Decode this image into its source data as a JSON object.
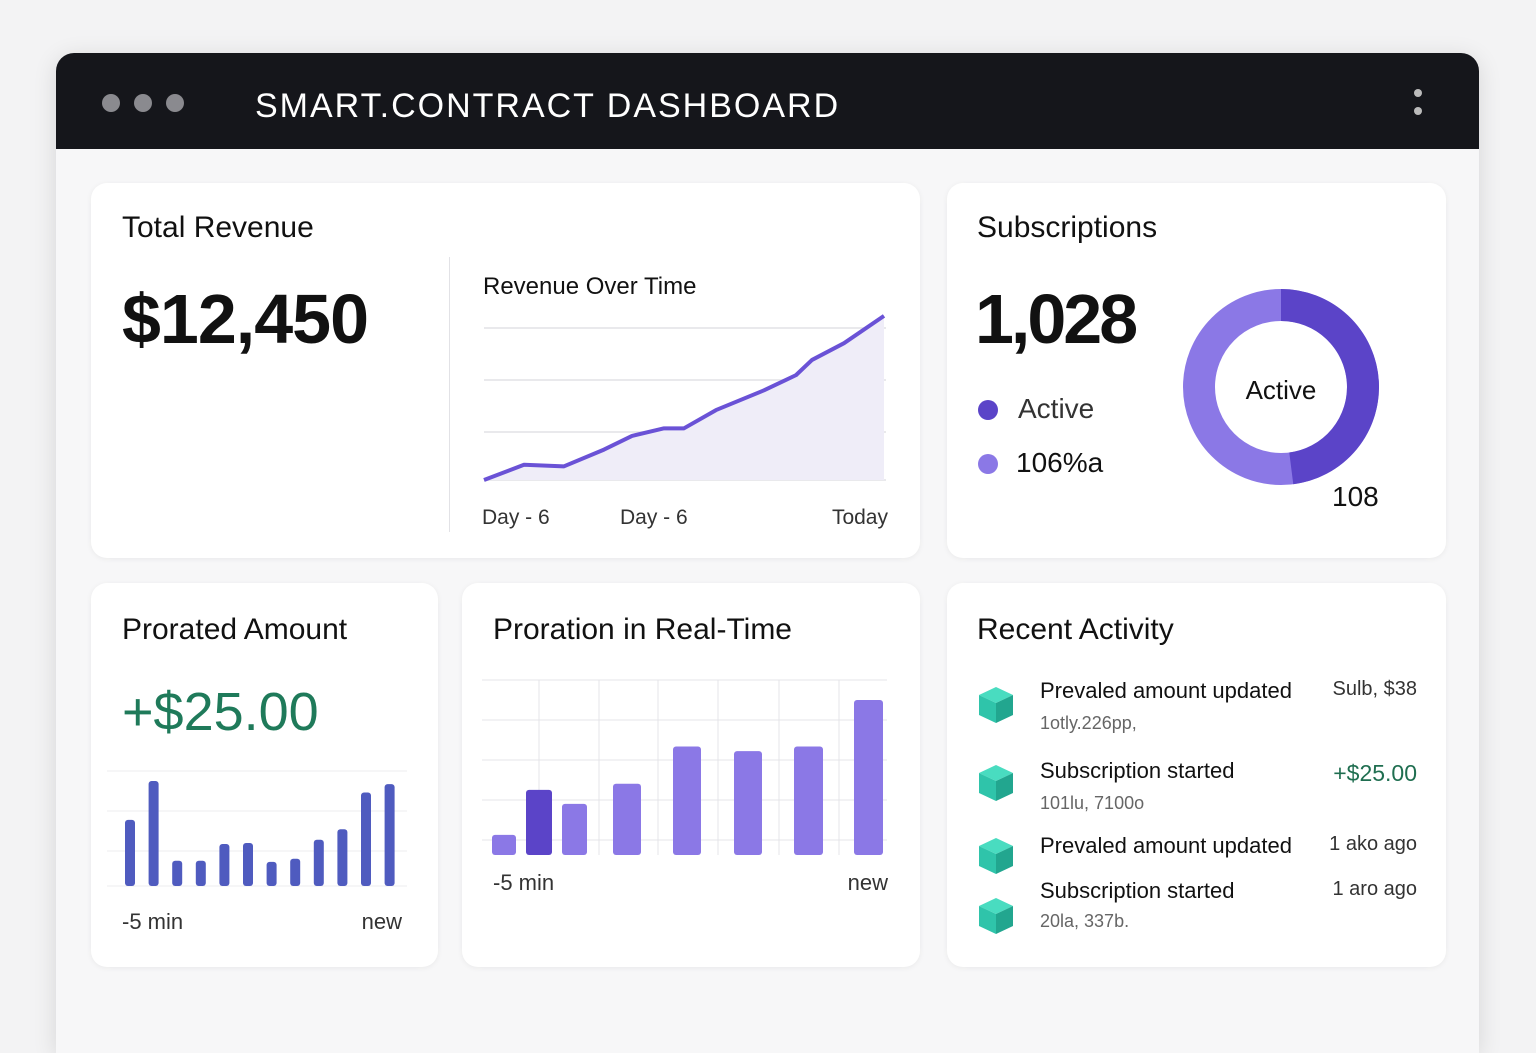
{
  "app": {
    "title": "SMART.CONTRACT DASHBOARD",
    "window_dots": 3
  },
  "revenue": {
    "title": "Total Revenue",
    "value": "$12,450",
    "chart_title": "Revenue Over Time",
    "x_labels": [
      "Day - 6",
      "Day - 6",
      "Today"
    ]
  },
  "subscriptions": {
    "title": "Subscriptions",
    "value": "1,028",
    "legend": [
      {
        "label": "Active",
        "color": "#5b44c8"
      },
      {
        "label": "106%a",
        "color": "#8b78e6"
      }
    ],
    "donut_center": "Active",
    "donut_label": "108",
    "active_fraction": 0.48
  },
  "prorated": {
    "title": "Prorated Amount",
    "value": "+$25.00",
    "x_start": "-5 min",
    "x_end": "new"
  },
  "realtime": {
    "title": "Proration in Real-Time",
    "x_start": "-5 min",
    "x_end": "new"
  },
  "activity": {
    "title": "Recent Activity",
    "items": [
      {
        "title": "Prevaled amount updated",
        "sub": "1otly.226pp,",
        "right": "Sulb, $38",
        "right_color": "#333333"
      },
      {
        "title": "Subscription started",
        "sub": "101lu, 7100o",
        "right": "+$25.00",
        "right_color": "#1f6e50"
      },
      {
        "title": "Prevaled amount updated",
        "sub": "",
        "right": "1 ako ago",
        "right_color": "#333333"
      },
      {
        "title": "Subscription started",
        "sub": "20la, 337b.",
        "right": "1 aro ago",
        "right_color": "#333333"
      }
    ]
  },
  "colors": {
    "accent": "#5b44c8",
    "accent_light": "#8b78e6",
    "bar_blue": "#4f5bbf",
    "green": "#1f7a5a",
    "teal": "#2fc4aa"
  },
  "chart_data": [
    {
      "type": "area",
      "title": "Revenue Over Time",
      "categories": [
        "Day - 6",
        "Day - 6",
        "Today"
      ],
      "x": [
        0,
        0.1,
        0.2,
        0.3,
        0.37,
        0.45,
        0.5,
        0.58,
        0.7,
        0.78,
        0.82,
        0.9,
        1
      ],
      "values": [
        0,
        10,
        9,
        20,
        29,
        34,
        34,
        46,
        59,
        69,
        79,
        90,
        108
      ],
      "ylim": [
        0,
        110
      ],
      "grid": true
    },
    {
      "type": "pie",
      "variant": "donut",
      "labels": [
        "Active",
        "Other"
      ],
      "values": [
        48,
        52
      ]
    },
    {
      "type": "bar",
      "title": "Prorated Amount",
      "values": [
        63,
        100,
        24,
        24,
        40,
        41,
        23,
        26,
        44,
        54,
        89,
        97
      ],
      "ylim": [
        0,
        110
      ],
      "grid": true
    },
    {
      "type": "bar",
      "title": "Proration in Real-Time",
      "values": [
        13,
        42,
        33,
        46,
        70,
        67,
        70,
        100
      ],
      "highlight_index": 1,
      "ylim": [
        0,
        110
      ],
      "grid": true
    }
  ]
}
